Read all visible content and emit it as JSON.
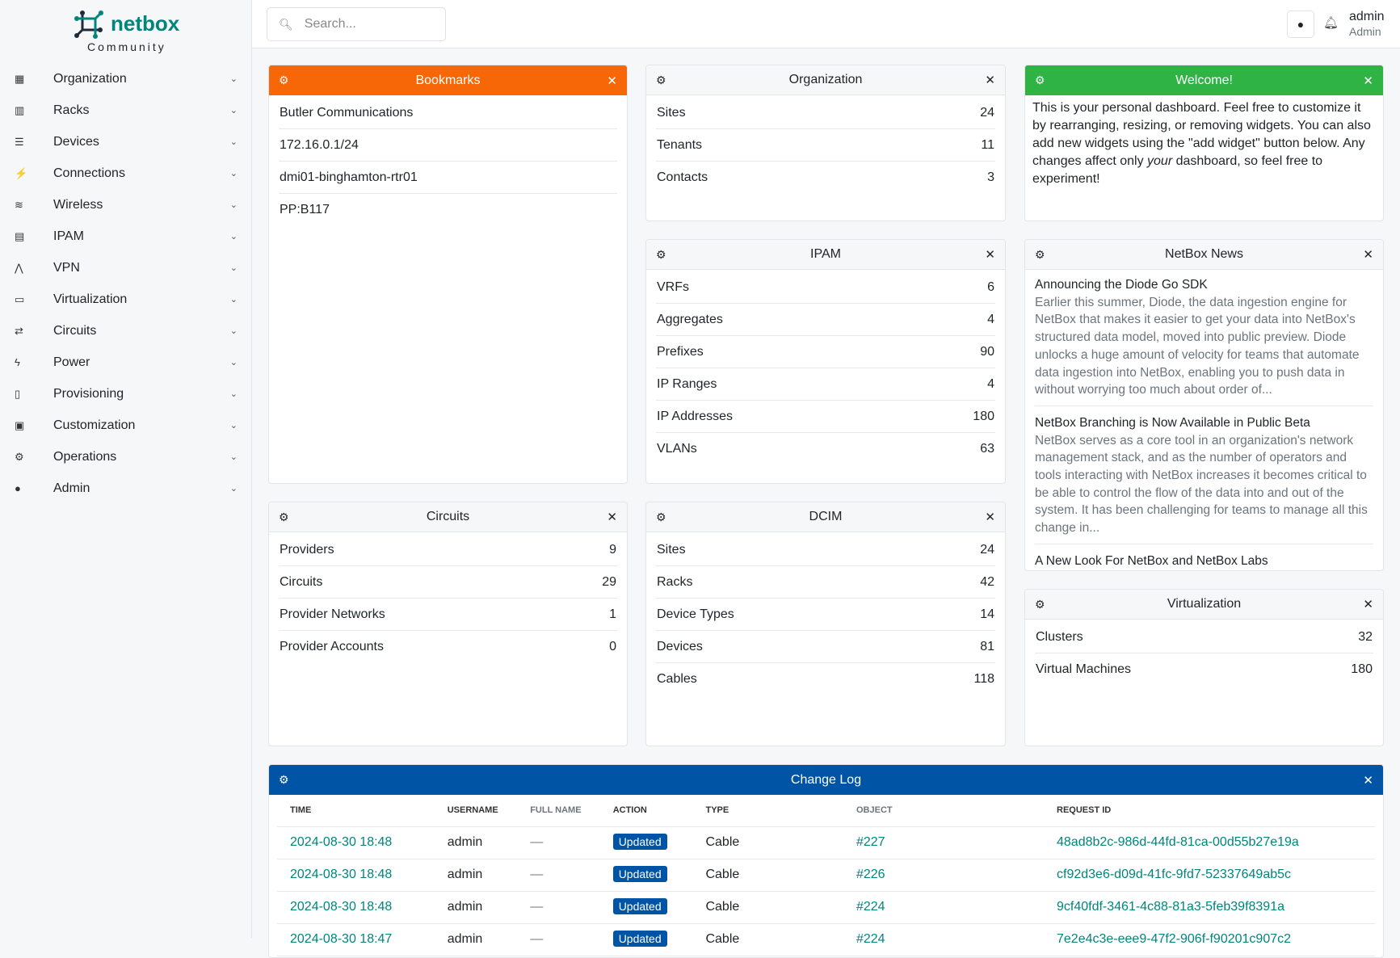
{
  "brand": {
    "name": "netbox",
    "edition": "Community",
    "color": "#00857d"
  },
  "sidebar": {
    "items": [
      {
        "label": "Organization",
        "icon": "building-icon"
      },
      {
        "label": "Racks",
        "icon": "rack-icon"
      },
      {
        "label": "Devices",
        "icon": "server-icon"
      },
      {
        "label": "Connections",
        "icon": "plug-icon"
      },
      {
        "label": "Wireless",
        "icon": "wifi-icon"
      },
      {
        "label": "IPAM",
        "icon": "counter-icon"
      },
      {
        "label": "VPN",
        "icon": "graph-icon"
      },
      {
        "label": "Virtualization",
        "icon": "monitor-icon"
      },
      {
        "label": "Circuits",
        "icon": "transit-icon"
      },
      {
        "label": "Power",
        "icon": "flash-icon"
      },
      {
        "label": "Provisioning",
        "icon": "file-icon"
      },
      {
        "label": "Customization",
        "icon": "toolbox-icon"
      },
      {
        "label": "Operations",
        "icon": "cogs-icon"
      },
      {
        "label": "Admin",
        "icon": "users-icon"
      }
    ]
  },
  "header": {
    "search_placeholder": "Search...",
    "user": "admin",
    "role": "Admin"
  },
  "bookmarks": {
    "title": "Bookmarks",
    "color": "#f76707",
    "items": [
      "Butler Communications",
      "172.16.0.1/24",
      "dmi01-binghamton-rtr01",
      "PP:B117"
    ]
  },
  "organization": {
    "title": "Organization",
    "rows": [
      {
        "label": "Sites",
        "value": "24"
      },
      {
        "label": "Tenants",
        "value": "11"
      },
      {
        "label": "Contacts",
        "value": "3"
      }
    ]
  },
  "welcome": {
    "title": "Welcome!",
    "color": "#2fb344",
    "text_before": "This is your personal dashboard. Feel free to customize it by rearranging, resizing, or removing widgets. You can also add new widgets using the \"add widget\" button below. Any changes affect only ",
    "text_em": "your",
    "text_after": " dashboard, so feel free to experiment!"
  },
  "ipam": {
    "title": "IPAM",
    "rows": [
      {
        "label": "VRFs",
        "value": "6"
      },
      {
        "label": "Aggregates",
        "value": "4"
      },
      {
        "label": "Prefixes",
        "value": "90"
      },
      {
        "label": "IP Ranges",
        "value": "4"
      },
      {
        "label": "IP Addresses",
        "value": "180"
      },
      {
        "label": "VLANs",
        "value": "63"
      }
    ]
  },
  "news": {
    "title": "NetBox News",
    "items": [
      {
        "title": "Announcing the Diode Go SDK",
        "desc": "Earlier this summer, Diode, the data ingestion engine for NetBox that makes it easier to get your data into NetBox's structured data model, moved into public preview. Diode unlocks a huge amount of velocity for teams that automate data ingestion into NetBox, enabling you to push data in without worrying too much about order of..."
      },
      {
        "title": "NetBox Branching is Now Available in Public Beta",
        "desc": "NetBox serves as a core tool in an organization's network management stack, and as the number of operators and tools interacting with NetBox increases it becomes critical to be able to control the flow of the data into and out of the system. It has been challenging for teams to manage all this change in..."
      },
      {
        "title": "A New Look For NetBox and NetBox Labs",
        "desc": ""
      }
    ]
  },
  "circuits": {
    "title": "Circuits",
    "rows": [
      {
        "label": "Providers",
        "value": "9"
      },
      {
        "label": "Circuits",
        "value": "29"
      },
      {
        "label": "Provider Networks",
        "value": "1"
      },
      {
        "label": "Provider Accounts",
        "value": "0"
      }
    ]
  },
  "dcim": {
    "title": "DCIM",
    "rows": [
      {
        "label": "Sites",
        "value": "24"
      },
      {
        "label": "Racks",
        "value": "42"
      },
      {
        "label": "Device Types",
        "value": "14"
      },
      {
        "label": "Devices",
        "value": "81"
      },
      {
        "label": "Cables",
        "value": "118"
      }
    ]
  },
  "virtualization": {
    "title": "Virtualization",
    "rows": [
      {
        "label": "Clusters",
        "value": "32"
      },
      {
        "label": "Virtual Machines",
        "value": "180"
      }
    ]
  },
  "changelog": {
    "title": "Change Log",
    "color": "#0054a6",
    "columns": [
      "TIME",
      "USERNAME",
      "FULL NAME",
      "ACTION",
      "TYPE",
      "OBJECT",
      "REQUEST ID"
    ],
    "rows": [
      [
        "2024-08-30 18:48",
        "admin",
        "—",
        "Updated",
        "Cable",
        "#227",
        "48ad8b2c-986d-44fd-81ca-00d55b27e19a"
      ],
      [
        "2024-08-30 18:48",
        "admin",
        "—",
        "Updated",
        "Cable",
        "#226",
        "cf92d3e6-d09d-41fc-9fd7-52337649ab5c"
      ],
      [
        "2024-08-30 18:48",
        "admin",
        "—",
        "Updated",
        "Cable",
        "#224",
        "9cf40fdf-3461-4c88-81a3-5feb39f8391a"
      ],
      [
        "2024-08-30 18:47",
        "admin",
        "—",
        "Updated",
        "Cable",
        "#224",
        "7e2e4c3e-eee9-47f2-906f-f90201c907c2"
      ]
    ]
  }
}
